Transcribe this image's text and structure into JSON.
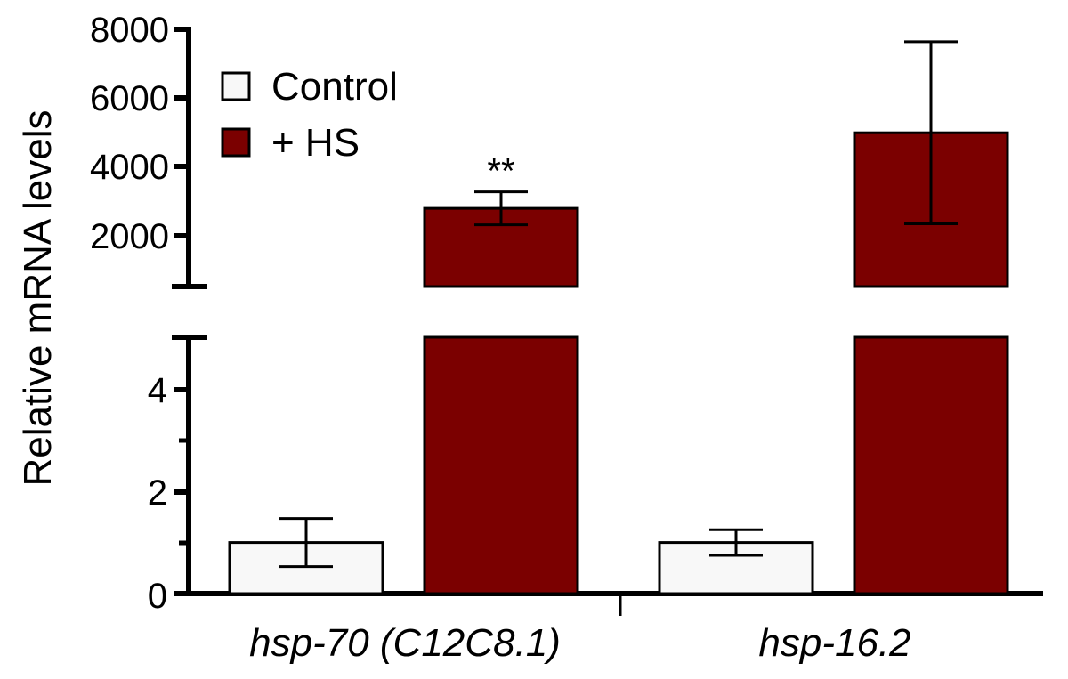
{
  "chart_data": {
    "type": "bar",
    "title": "",
    "xlabel": "",
    "ylabel": "Relative mRNA levels",
    "categories": [
      "hsp-70 (C12C8.1)",
      "hsp-16.2"
    ],
    "series": [
      {
        "name": "Control",
        "color": "#f8f8f8",
        "values": [
          1.0,
          1.0
        ],
        "errors": [
          0.47,
          0.25
        ]
      },
      {
        "name": "+ HS",
        "color": "#7b0000",
        "values": [
          2800,
          5000
        ],
        "errors": [
          480,
          2650
        ]
      }
    ],
    "axis_break": {
      "lower_range": [
        0,
        5
      ],
      "upper_range": [
        700,
        8000
      ]
    },
    "yticks_lower": [
      "0",
      "2",
      "4"
    ],
    "yticks_upper": [
      "2000",
      "4000",
      "6000",
      "8000"
    ],
    "annotations": [
      {
        "category": "hsp-70 (C12C8.1)",
        "series": "+ HS",
        "text": "**"
      }
    ],
    "legend": {
      "position": "top-left",
      "entries": [
        "Control",
        "+ HS"
      ]
    },
    "grid": false
  }
}
